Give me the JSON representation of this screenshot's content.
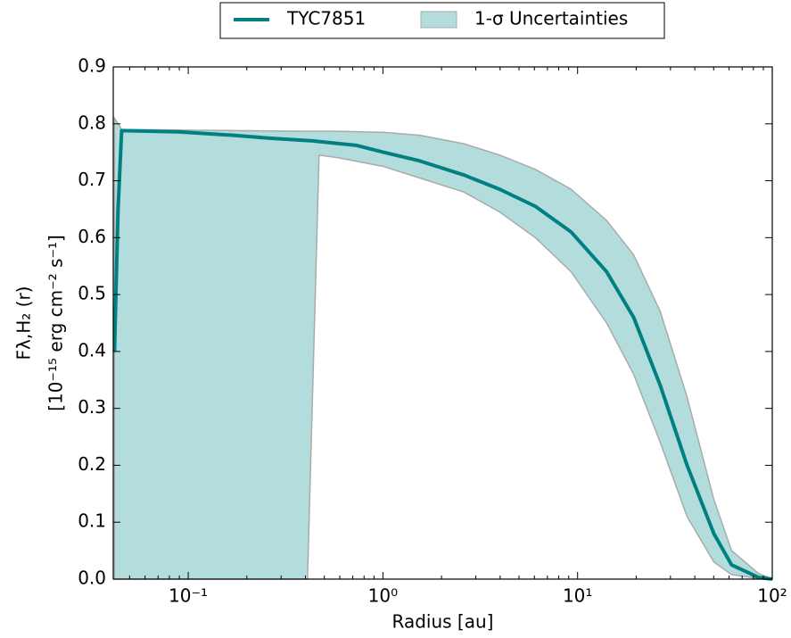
{
  "chart_data": {
    "type": "line",
    "xlabel": "Radius [au]",
    "ylabel": [
      "Fλ,H₂ (r)",
      "[10⁻¹⁵ erg cm⁻² s⁻¹]"
    ],
    "xscale": "log",
    "xlim": [
      0.0412,
      100
    ],
    "ylim": [
      0,
      0.9
    ],
    "xticks": [
      {
        "value": 0.1,
        "label": "10⁻¹"
      },
      {
        "value": 1,
        "label": "10⁰"
      },
      {
        "value": 10,
        "label": "10¹"
      },
      {
        "value": 100,
        "label": "10²"
      }
    ],
    "yticks": [
      {
        "value": 0,
        "label": "0.0"
      },
      0.1,
      0.2,
      0.3,
      0.4,
      0.5,
      0.6,
      0.7,
      0.8,
      0.9
    ],
    "legend": "top",
    "series": [
      {
        "name": "TYC7851",
        "color": "#008080",
        "x": [
          0.0418,
          0.0436,
          0.0455,
          0.0893,
          0.168,
          0.257,
          0.435,
          0.736,
          1.01,
          1.54,
          2.61,
          3.98,
          6.07,
          9.26,
          14.1,
          19.4,
          26.6,
          36.5,
          50.1,
          61.8,
          84.9,
          100
        ],
        "values": [
          0.4,
          0.65,
          0.788,
          0.786,
          0.78,
          0.775,
          0.77,
          0.762,
          0.75,
          0.735,
          0.71,
          0.685,
          0.655,
          0.61,
          0.54,
          0.46,
          0.34,
          0.2,
          0.08,
          0.025,
          0.003,
          0
        ]
      }
    ],
    "band": {
      "name": "1-σ Uncertainties",
      "color": "#b3dcdc",
      "edge_color": "#aaaaaa",
      "x": [
        0.0418,
        0.0455,
        0.41,
        0.47,
        0.6,
        1.01,
        1.54,
        2.61,
        3.98,
        6.07,
        9.26,
        14.1,
        19.4,
        26.6,
        36.5,
        50.1,
        61.8,
        84.9,
        100
      ],
      "upper": [
        0.81,
        0.79,
        0.787,
        0.787,
        0.787,
        0.785,
        0.78,
        0.765,
        0.745,
        0.72,
        0.685,
        0.63,
        0.57,
        0.47,
        0.32,
        0.14,
        0.05,
        0.01,
        0
      ],
      "lower": [
        0,
        0,
        0,
        0.745,
        0.74,
        0.725,
        0.705,
        0.68,
        0.645,
        0.6,
        0.54,
        0.45,
        0.36,
        0.24,
        0.11,
        0.03,
        0.008,
        0.001,
        0
      ]
    }
  }
}
